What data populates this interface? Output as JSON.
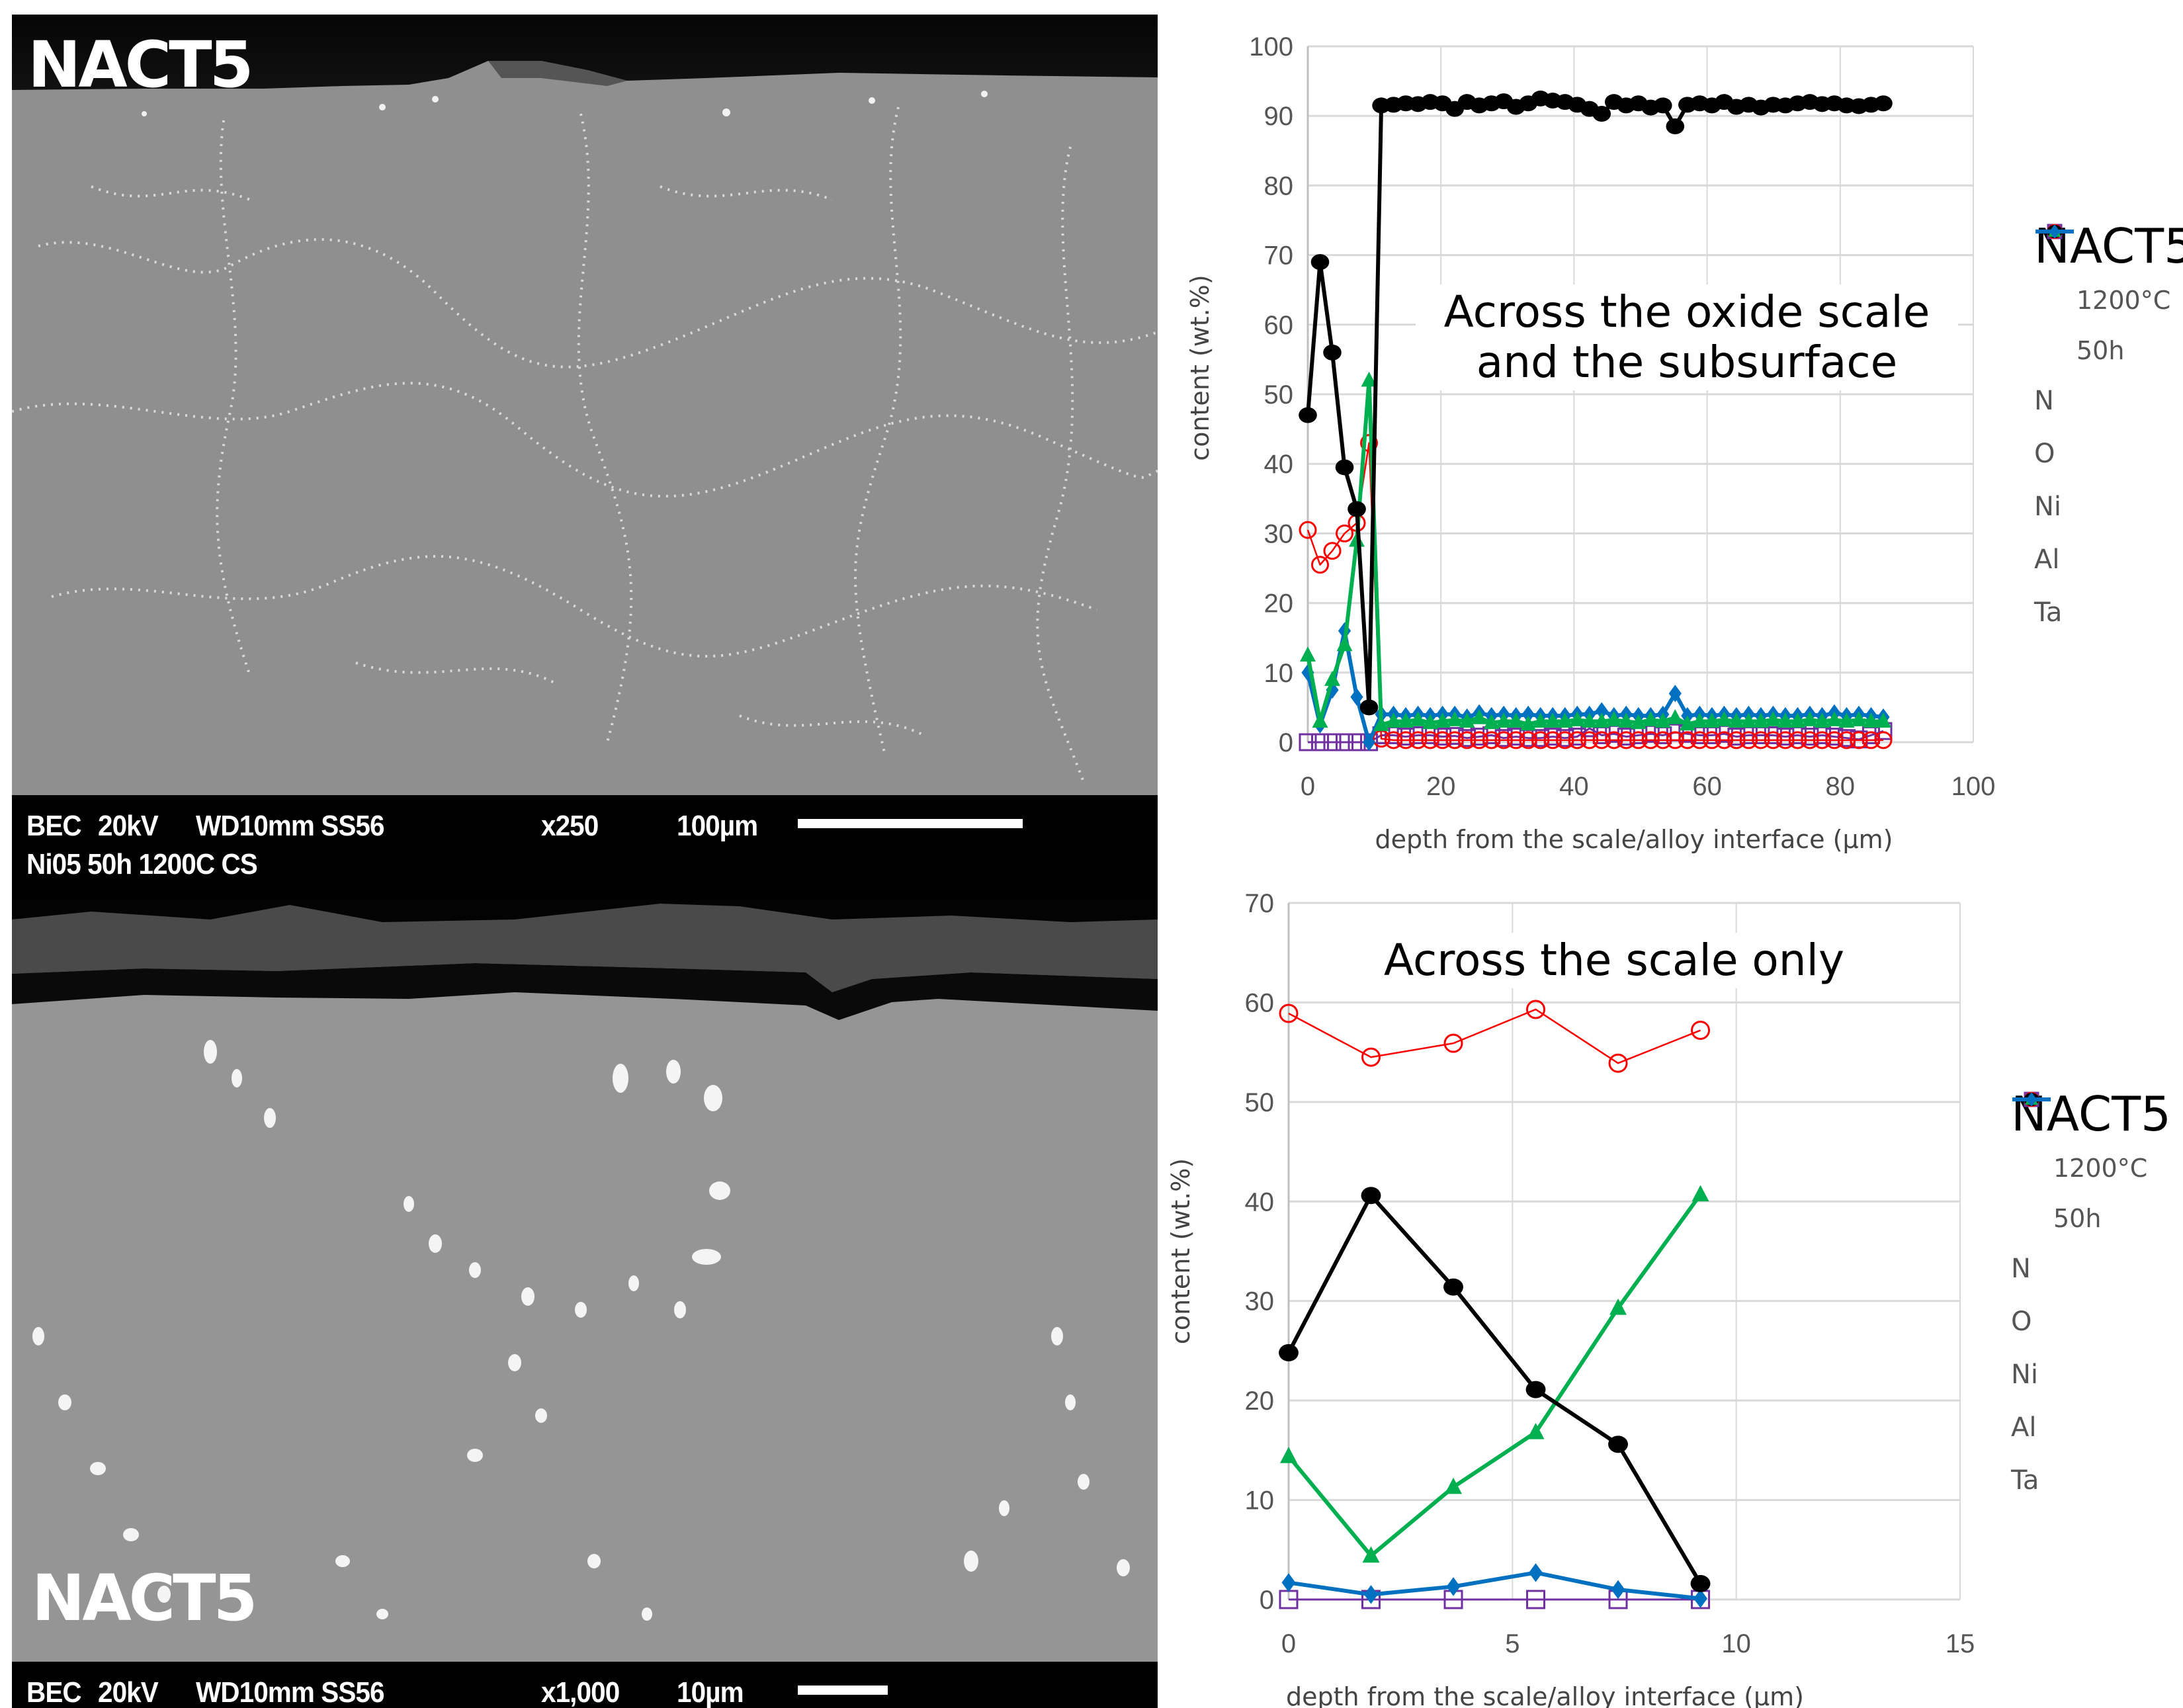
{
  "sem_top": {
    "label": "NACT5",
    "info_line1": {
      "mode": "BEC",
      "voltage": "20kV",
      "working_distance": "WD10mm SS56",
      "magnification": "x250",
      "scale": "100µm"
    },
    "info_line2": "Ni05 50h 1200C CS"
  },
  "sem_bottom": {
    "label": "NACT5",
    "info_line1": {
      "mode": "BEC",
      "voltage": "20kV",
      "working_distance": "WD10mm SS56",
      "magnification": "x1,000",
      "scale": "10µm"
    }
  },
  "chart_top": {
    "annotation_line1": "Across the oxide scale",
    "annotation_line2": "and the subsurface",
    "ylabel": "content (wt.%)",
    "xlabel": "depth from the scale/alloy interface (µm)",
    "legend": {
      "title": "NACT5",
      "temperature": "1200°C",
      "duration": "50h",
      "items": [
        "N",
        "O",
        "Ni",
        "Al",
        "Ta"
      ]
    }
  },
  "chart_bottom": {
    "annotation": "Across the scale only",
    "ylabel": "content (wt.%)",
    "xlabel": "depth from the scale/alloy interface (µm)",
    "legend": {
      "title": "NACT5",
      "temperature": "1200°C",
      "duration": "50h",
      "items": [
        "N",
        "O",
        "Ni",
        "Al",
        "Ta"
      ]
    }
  },
  "colors": {
    "N": "#7030a0",
    "O": "#ff0000",
    "Ni": "#000000",
    "Al": "#00b050",
    "Ta": "#0070c0",
    "grid": "#d9d9d9"
  },
  "chart_data": [
    {
      "type": "line",
      "title": "Across the oxide scale and the subsurface",
      "xlabel": "depth from the scale/alloy interface (µm)",
      "ylabel": "content (wt.%)",
      "xlim": [
        0,
        100
      ],
      "ylim": [
        0,
        100
      ],
      "xticks": [
        0,
        20,
        40,
        60,
        80,
        100
      ],
      "yticks": [
        0,
        10,
        20,
        30,
        40,
        50,
        60,
        70,
        80,
        90,
        100
      ],
      "grid": true,
      "legend_position": "right",
      "legend_title": "NACT5 1200°C 50h",
      "x": [
        0,
        1.84,
        3.68,
        5.52,
        7.36,
        9.2,
        11.04,
        12.88,
        14.72,
        16.56,
        18.4,
        20.24,
        22.08,
        23.92,
        25.76,
        27.6,
        29.44,
        31.28,
        33.12,
        34.96,
        36.8,
        38.64,
        40.48,
        42.32,
        44.16,
        46.0,
        47.84,
        49.68,
        51.52,
        53.36,
        55.2,
        57.04,
        58.88,
        60.72,
        62.56,
        64.4,
        66.24,
        68.08,
        69.92,
        71.76,
        73.6,
        75.44,
        77.28,
        79.12,
        80.96,
        82.8,
        84.64,
        86.48
      ],
      "series": [
        {
          "name": "N",
          "marker": "open-square",
          "values": [
            0,
            0,
            0,
            0,
            0,
            0,
            1.0,
            1.0,
            0.8,
            1.0,
            1.0,
            0.8,
            0.9,
            0.6,
            0.8,
            1.0,
            0.6,
            0.8,
            0.6,
            0.6,
            0.8,
            0.6,
            0.8,
            2.0,
            1.0,
            1.2,
            0.8,
            1.0,
            1.2,
            1.0,
            1.4,
            1.2,
            1.0,
            1.0,
            1.2,
            0.8,
            1.0,
            1.0,
            1.0,
            0.8,
            1.0,
            0.8,
            1.0,
            0.8,
            0.6,
            0.4,
            1.0,
            1.6
          ]
        },
        {
          "name": "O",
          "marker": "open-circle",
          "values": [
            30.5,
            25.5,
            27.5,
            30.0,
            31.5,
            43.0,
            0.5,
            0.3,
            0.3,
            0.3,
            0.3,
            0.3,
            0.3,
            0.3,
            0.3,
            0.3,
            0.3,
            0.3,
            0.3,
            0.3,
            0.3,
            0.3,
            0.3,
            0.3,
            0.3,
            0.3,
            0.3,
            0.3,
            0.3,
            0.3,
            0.3,
            0.3,
            0.3,
            0.3,
            0.3,
            0.3,
            0.3,
            0.3,
            0.3,
            0.3,
            0.3,
            0.3,
            0.3,
            0.3,
            0.3,
            0.3,
            0.3,
            0.3
          ]
        },
        {
          "name": "Ni",
          "marker": "filled-circle",
          "values": [
            47.0,
            69.0,
            56.0,
            39.5,
            33.5,
            5.0,
            91.5,
            91.6,
            91.8,
            91.7,
            92.0,
            91.8,
            91.0,
            92.0,
            91.5,
            91.8,
            92.1,
            91.3,
            91.8,
            92.5,
            92.2,
            92.0,
            91.6,
            91.0,
            90.3,
            92.0,
            91.5,
            91.8,
            91.2,
            91.5,
            88.5,
            91.6,
            91.8,
            91.5,
            92.0,
            91.3,
            91.6,
            91.2,
            91.6,
            91.5,
            91.8,
            92.0,
            91.7,
            91.8,
            91.5,
            91.4,
            91.6,
            91.8
          ]
        },
        {
          "name": "Al",
          "marker": "filled-triangle",
          "values": [
            12.5,
            3.0,
            9.0,
            14.0,
            29.0,
            52.0,
            2.5,
            3.0,
            3.0,
            3.2,
            2.8,
            3.0,
            3.2,
            3.0,
            3.5,
            2.8,
            3.0,
            3.0,
            2.6,
            3.0,
            3.0,
            3.0,
            3.2,
            3.0,
            3.0,
            3.2,
            3.0,
            2.8,
            3.2,
            3.0,
            3.5,
            2.6,
            3.0,
            3.0,
            3.2,
            3.0,
            3.0,
            3.0,
            3.2,
            3.0,
            3.0,
            3.2,
            3.0,
            3.2,
            3.0,
            3.2,
            3.0,
            3.0
          ]
        },
        {
          "name": "Ta",
          "marker": "filled-diamond",
          "values": [
            10.0,
            2.5,
            7.5,
            16.0,
            6.5,
            0.0,
            4.0,
            4.0,
            3.8,
            4.0,
            3.8,
            4.0,
            4.0,
            3.6,
            4.2,
            3.8,
            4.0,
            3.8,
            4.0,
            3.8,
            3.8,
            3.8,
            4.0,
            4.0,
            4.5,
            3.8,
            4.0,
            3.8,
            3.8,
            4.0,
            7.0,
            3.8,
            4.0,
            3.8,
            4.0,
            3.8,
            4.0,
            3.8,
            4.0,
            3.8,
            3.8,
            4.0,
            3.8,
            4.2,
            3.8,
            4.0,
            3.8,
            3.6
          ]
        }
      ]
    },
    {
      "type": "line",
      "title": "Across the scale only",
      "xlabel": "depth from the scale/alloy interface (µm)",
      "ylabel": "content (wt.%)",
      "xlim": [
        0,
        15
      ],
      "ylim": [
        0,
        70
      ],
      "xticks": [
        0,
        5,
        10,
        15
      ],
      "yticks": [
        0,
        10,
        20,
        30,
        40,
        50,
        60,
        70
      ],
      "grid": true,
      "legend_position": "right",
      "legend_title": "NACT5 1200°C 50h",
      "x": [
        0,
        1.84,
        3.68,
        5.52,
        7.36,
        9.2
      ],
      "series": [
        {
          "name": "N",
          "marker": "open-square",
          "values": [
            0,
            0,
            0,
            0,
            0,
            0
          ]
        },
        {
          "name": "O",
          "marker": "open-circle",
          "values": [
            58.9,
            54.5,
            55.9,
            59.3,
            53.9,
            57.2
          ]
        },
        {
          "name": "Ni",
          "marker": "filled-circle",
          "values": [
            24.8,
            40.6,
            31.4,
            21.1,
            15.6,
            1.6
          ]
        },
        {
          "name": "Al",
          "marker": "filled-triangle",
          "values": [
            14.4,
            4.4,
            11.3,
            16.8,
            29.3,
            40.7
          ]
        },
        {
          "name": "Ta",
          "marker": "filled-diamond",
          "values": [
            1.7,
            0.5,
            1.3,
            2.7,
            1.0,
            0.1
          ]
        }
      ]
    }
  ]
}
